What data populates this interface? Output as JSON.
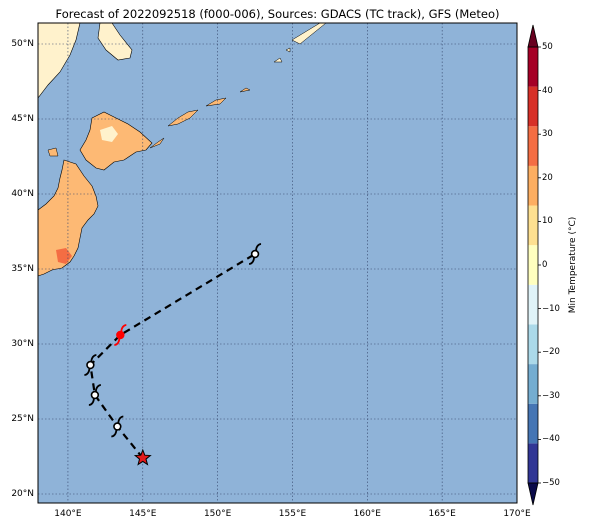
{
  "title": "Forecast of 2022092518 (f000-006), Sources: GDACS (TC track), GFS (Meteo)",
  "map": {
    "lon_range": [
      138,
      170
    ],
    "lat_range": [
      19.4,
      51.4
    ],
    "lat_ticks": [
      "20°N",
      "25°N",
      "30°N",
      "35°N",
      "40°N",
      "45°N",
      "50°N"
    ],
    "lat_values": [
      20,
      25,
      30,
      35,
      40,
      45,
      50
    ],
    "lon_ticks": [
      "140°E",
      "145°E",
      "150°E",
      "155°E",
      "160°E",
      "165°E",
      "170°E"
    ],
    "lon_values": [
      140,
      145,
      150,
      155,
      160,
      165,
      170
    ],
    "ocean_color": "#8fb3d8",
    "gridlines": true
  },
  "track": {
    "color": "#000000",
    "style": "dashed",
    "points": [
      {
        "lon": 145.0,
        "lat": 22.4,
        "marker": "star",
        "color": "#e31a1c"
      },
      {
        "lon": 143.3,
        "lat": 24.5,
        "marker": "typhoon-icon",
        "color": "#000000"
      },
      {
        "lon": 141.8,
        "lat": 26.6,
        "marker": "typhoon-icon",
        "color": "#000000"
      },
      {
        "lon": 141.5,
        "lat": 28.6,
        "marker": "typhoon-icon",
        "color": "#000000"
      },
      {
        "lon": 143.5,
        "lat": 30.6,
        "marker": "typhoon-icon",
        "color": "#ff0000"
      },
      {
        "lon": 152.5,
        "lat": 36.0,
        "marker": "typhoon-icon",
        "color": "#000000"
      }
    ]
  },
  "colorbar": {
    "label": "Min Temperature (°C)",
    "ticks": [
      "50",
      "40",
      "30",
      "20",
      "10",
      "0",
      "−10",
      "−20",
      "−30",
      "−40",
      "−50"
    ],
    "values": [
      50,
      40,
      30,
      20,
      10,
      0,
      -10,
      -20,
      -30,
      -40,
      -50
    ],
    "extend": "both",
    "colors": [
      "#313695",
      "#4575b4",
      "#74add1",
      "#abd9e9",
      "#e0f3f8",
      "#ffffbf",
      "#fee090",
      "#fdae61",
      "#f46d43",
      "#d73027",
      "#a50026"
    ]
  },
  "land_colors": {
    "warm_10_20": "#fdb974",
    "cool_0_10": "#fff2cc",
    "hot_20_30": "#f46d43"
  }
}
